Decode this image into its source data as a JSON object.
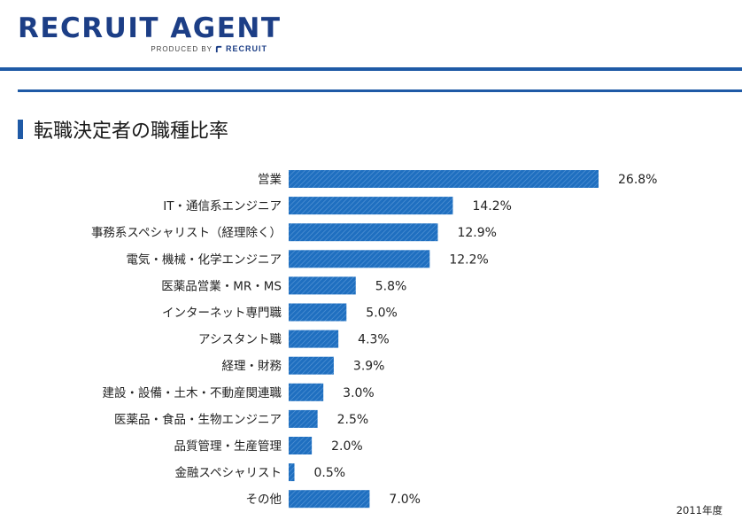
{
  "header": {
    "logo_text": "RECRUIT AGENT",
    "produced_by": "PRODUCED BY",
    "brand": "RECRUIT"
  },
  "section": {
    "title": "転職決定者の職種比率"
  },
  "footnote": "2011年度",
  "colors": {
    "brand_blue": "#1c3e86",
    "rule_blue": "#1f5aa6",
    "bar_blue": "#1f6fc0"
  },
  "chart_data": {
    "type": "bar",
    "orientation": "horizontal",
    "title": "転職決定者の職種比率",
    "categories": [
      "営業",
      "IT・通信系エンジニア",
      "事務系スペシャリスト（経理除く）",
      "電気・機械・化学エンジニア",
      "医薬品営業・MR・MS",
      "インターネット専門職",
      "アシスタント職",
      "経理・財務",
      "建設・設備・土木・不動産関連職",
      "医薬品・食品・生物エンジニア",
      "品質管理・生産管理",
      "金融スペシャリスト",
      "その他"
    ],
    "values": [
      26.8,
      14.2,
      12.9,
      12.2,
      5.8,
      5.0,
      4.3,
      3.9,
      3.0,
      2.5,
      2.0,
      0.5,
      7.0
    ],
    "value_labels": [
      "26.8%",
      "14.2%",
      "12.9%",
      "12.2%",
      "5.8%",
      "5.0%",
      "4.3%",
      "3.9%",
      "3.0%",
      "2.5%",
      "2.0%",
      "0.5%",
      "7.0%"
    ],
    "xlim": [
      0,
      26.8
    ],
    "grid": false,
    "legend": "none"
  }
}
